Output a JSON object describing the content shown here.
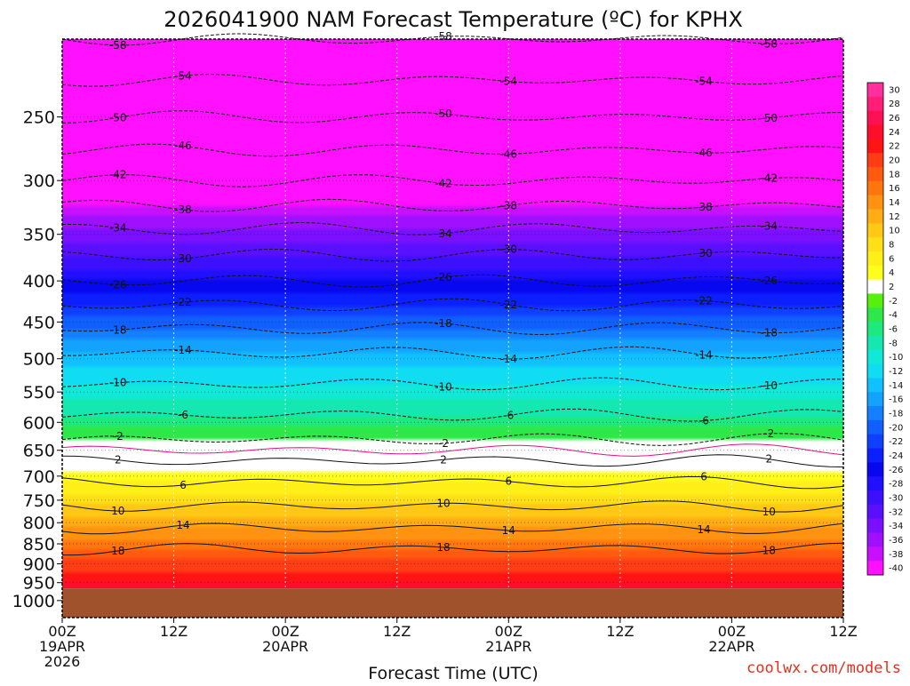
{
  "chart_data": {
    "type": "heatmap",
    "title": "2026041900 NAM Forecast Temperature (ºC) for KPHX",
    "xlabel": "Forecast Time (UTC)",
    "ylabel": "",
    "credit": "coolwx.com/models",
    "x_range_hours": [
      0,
      84
    ],
    "y_range_hpa": [
      200,
      1050
    ],
    "surface_pressure_hpa": 966,
    "y_ticks": [
      250,
      300,
      350,
      400,
      450,
      500,
      550,
      600,
      650,
      700,
      750,
      800,
      850,
      900,
      950,
      1000
    ],
    "x_ticks": [
      {
        "hour": 0,
        "label": "00Z",
        "date": "19APR",
        "year": "2026"
      },
      {
        "hour": 12,
        "label": "12Z",
        "date": "",
        "year": ""
      },
      {
        "hour": 24,
        "label": "00Z",
        "date": "20APR",
        "year": ""
      },
      {
        "hour": 36,
        "label": "12Z",
        "date": "",
        "year": ""
      },
      {
        "hour": 48,
        "label": "00Z",
        "date": "21APR",
        "year": ""
      },
      {
        "hour": 60,
        "label": "12Z",
        "date": "",
        "year": ""
      },
      {
        "hour": 72,
        "label": "00Z",
        "date": "22APR",
        "year": ""
      },
      {
        "hour": 84,
        "label": "12Z",
        "date": "",
        "year": ""
      }
    ],
    "colorbar": {
      "labels": [
        "30",
        "28",
        "26",
        "24",
        "22",
        "20",
        "18",
        "16",
        "14",
        "12",
        "10",
        "8",
        "6",
        "4",
        "2",
        "-2",
        "-4",
        "-6",
        "-8",
        "-10",
        "-12",
        "-14",
        "-16",
        "-18",
        "-20",
        "-22",
        "-24",
        "-26",
        "-28",
        "-30",
        "-32",
        "-34",
        "-36",
        "-38",
        "-40"
      ],
      "colors": [
        "#ff2f9e",
        "#ff1f79",
        "#ff1052",
        "#ff0d2a",
        "#ff1414",
        "#ff3d14",
        "#ff5a10",
        "#ff760c",
        "#ff9210",
        "#ffad12",
        "#ffc814",
        "#ffe016",
        "#ffef18",
        "#fffd1c",
        "#ffffff",
        "#56f00c",
        "#2ee84a",
        "#1ee880",
        "#14e8b0",
        "#10e8d8",
        "#10dcf2",
        "#10c0ff",
        "#14a2ff",
        "#1480ff",
        "#1060ff",
        "#1040ff",
        "#0c20ff",
        "#0808f0",
        "#2010ff",
        "#3c10ff",
        "#5a10ff",
        "#7a10ff",
        "#9e10ff",
        "#c810ff",
        "#ff10ff"
      ]
    },
    "temperature_profile": [
      {
        "p": 200,
        "t": -58
      },
      {
        "p": 250,
        "t": -50
      },
      {
        "p": 300,
        "t": -42
      },
      {
        "p": 350,
        "t": -33
      },
      {
        "p": 400,
        "t": -26
      },
      {
        "p": 450,
        "t": -19
      },
      {
        "p": 500,
        "t": -13
      },
      {
        "p": 550,
        "t": -9
      },
      {
        "p": 600,
        "t": -5
      },
      {
        "p": 650,
        "t": 0
      },
      {
        "p": 700,
        "t": 5
      },
      {
        "p": 750,
        "t": 9
      },
      {
        "p": 800,
        "t": 13
      },
      {
        "p": 850,
        "t": 17
      },
      {
        "p": 900,
        "t": 21
      },
      {
        "p": 950,
        "t": 24
      }
    ],
    "contours": [
      {
        "label": "-58",
        "style": "dashed"
      },
      {
        "label": "-54",
        "style": "dashed"
      },
      {
        "label": "-50",
        "style": "dashed"
      },
      {
        "label": "-46",
        "style": "dashed"
      },
      {
        "label": "-42",
        "style": "dashed"
      },
      {
        "label": "-38",
        "style": "dashed"
      },
      {
        "label": "-34",
        "style": "dashed"
      },
      {
        "label": "-30",
        "style": "dashed"
      },
      {
        "label": "-26",
        "style": "dashed"
      },
      {
        "label": "-22",
        "style": "dashed"
      },
      {
        "label": "-18",
        "style": "dashed"
      },
      {
        "label": "-14",
        "style": "dashed"
      },
      {
        "label": "-10",
        "style": "dashed"
      },
      {
        "label": "-6",
        "style": "dashed"
      },
      {
        "label": "-2",
        "style": "dashed"
      },
      {
        "label": "0",
        "style": "freezing"
      },
      {
        "label": "2",
        "style": "solid"
      },
      {
        "label": "6",
        "style": "solid"
      },
      {
        "label": "10",
        "style": "solid"
      },
      {
        "label": "14",
        "style": "solid"
      },
      {
        "label": "18",
        "style": "solid"
      }
    ]
  }
}
